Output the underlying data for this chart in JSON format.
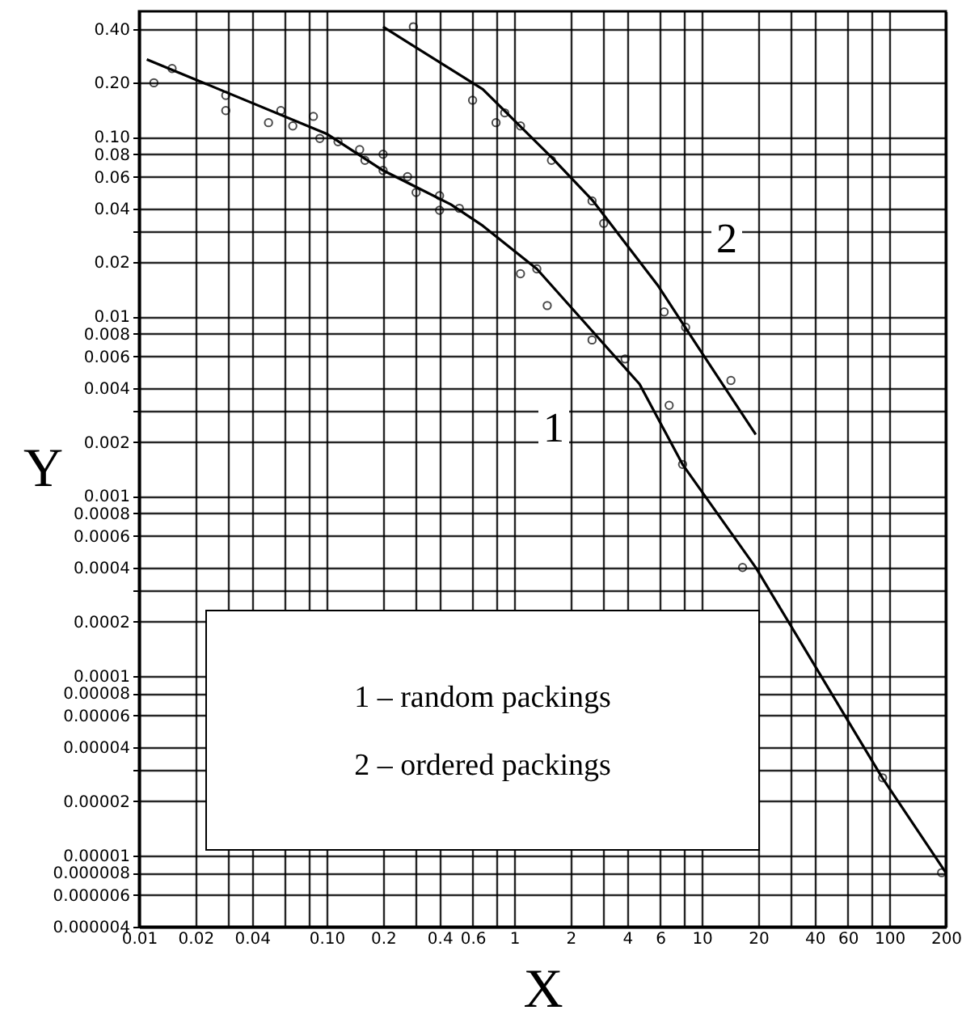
{
  "chart_data": {
    "type": "line",
    "xlabel": "X",
    "ylabel": "Y",
    "log": "xy",
    "grid": true,
    "xlim": [
      0.01,
      200
    ],
    "ylim": [
      4e-06,
      0.5
    ],
    "xticks": [
      0.01,
      0.02,
      {
        "value": 0.03,
        "label": null
      },
      0.04,
      {
        "value": 0.06,
        "label": null
      },
      {
        "value": 0.08,
        "label": null
      },
      {
        "value": 0.1,
        "label": "0.10"
      },
      0.2,
      {
        "value": 0.3,
        "label": null
      },
      0.4,
      0.6,
      {
        "value": 0.8,
        "label": null
      },
      1,
      2,
      {
        "value": 3,
        "label": null
      },
      4,
      6,
      {
        "value": 8,
        "label": null
      },
      10,
      20,
      {
        "value": 30,
        "label": null
      },
      40,
      60,
      {
        "value": 80,
        "label": null
      },
      100,
      200
    ],
    "yticks": [
      {
        "value": 0.4,
        "label": "0.40"
      },
      {
        "value": 0.2,
        "label": "0.20"
      },
      {
        "value": 0.1,
        "label": "0.10"
      },
      0.08,
      0.06,
      0.04,
      {
        "value": 0.03,
        "label": null
      },
      0.02,
      0.01,
      0.008,
      0.006,
      0.004,
      {
        "value": 0.003,
        "label": null
      },
      0.002,
      0.001,
      0.0008,
      0.0006,
      0.0004,
      {
        "value": 0.0003,
        "label": null
      },
      0.0002,
      0.0001,
      {
        "value": 8e-05,
        "label": "0.00008"
      },
      {
        "value": 6e-05,
        "label": "0.00006"
      },
      {
        "value": 4e-05,
        "label": "0.00004"
      },
      {
        "value": 3e-05,
        "label": null
      },
      {
        "value": 2e-05,
        "label": "0.00002"
      },
      {
        "value": 1e-05,
        "label": "0.00001"
      },
      {
        "value": 8e-06,
        "label": "0.000008"
      },
      {
        "value": 6e-06,
        "label": "0.000006"
      },
      {
        "value": 4e-06,
        "label": "0.000004"
      }
    ],
    "series": [
      {
        "color": "#000000",
        "x": [
          0.011,
          0.1,
          0.2,
          0.46,
          0.68,
          1.32,
          4.66,
          7.9,
          19.4,
          91.7,
          200
        ],
        "values": [
          0.27,
          0.104,
          0.065,
          0.042,
          0.032,
          0.0184,
          0.0042,
          0.0015,
          0.0004,
          2.7e-05,
          8e-06
        ]
      },
      {
        "color": "#000000",
        "x": [
          0.2,
          0.68,
          1.58,
          2.63,
          5.8,
          9.6,
          19.4
        ],
        "values": [
          0.41,
          0.184,
          0.077,
          0.044,
          0.015,
          0.0067,
          0.0022
        ]
      },
      {
        "type": "scatter",
        "color": "#000000",
        "marker": "circle",
        "x": [
          0.012,
          0.015,
          0.029,
          0.029,
          0.049,
          0.057,
          0.066,
          0.085,
          0.092,
          0.115,
          0.15,
          0.16,
          0.2,
          0.2,
          0.27,
          0.3,
          0.4,
          0.4,
          0.51,
          1.08,
          1.32,
          1.5,
          2.6,
          3.9,
          6.7,
          7.9,
          16.5,
          92,
          190
        ],
        "values": [
          0.2,
          0.24,
          0.17,
          0.14,
          0.12,
          0.14,
          0.115,
          0.13,
          0.098,
          0.094,
          0.085,
          0.074,
          0.08,
          0.065,
          0.06,
          0.049,
          0.047,
          0.039,
          0.04,
          0.0173,
          0.0184,
          0.0115,
          0.0074,
          0.0058,
          0.0032,
          0.0015,
          0.0004,
          2.7e-05,
          8e-06
        ]
      },
      {
        "type": "scatter",
        "color": "#000000",
        "marker": "circle",
        "x": [
          0.29,
          0.6,
          0.8,
          0.89,
          1.08,
          1.58,
          2.6,
          3.0,
          6.3,
          8.2,
          14.3
        ],
        "values": [
          0.41,
          0.16,
          0.12,
          0.136,
          0.115,
          0.074,
          0.044,
          0.033,
          0.0106,
          0.0087,
          0.0044
        ]
      }
    ],
    "annotations": [
      "1",
      "2",
      "1 – random packings",
      "2 – ordered packings"
    ]
  }
}
